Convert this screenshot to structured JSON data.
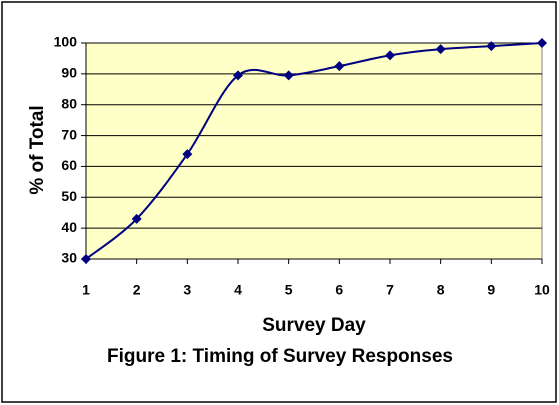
{
  "chart_data": {
    "type": "line",
    "title": "Figure 1: Timing of Survey Responses",
    "x_label": "Survey Day",
    "y_label": "% of Total",
    "x": [
      1,
      2,
      3,
      4,
      5,
      6,
      7,
      8,
      9,
      10
    ],
    "values": [
      30,
      43,
      64,
      89.5,
      89.5,
      92.5,
      96,
      98,
      99,
      100
    ],
    "color": "#000080",
    "smooth": true,
    "xlim": [
      1,
      10
    ],
    "xticks": [
      1,
      2,
      3,
      4,
      5,
      6,
      7,
      8,
      9,
      10
    ],
    "ylim": [
      30,
      100
    ],
    "yticks": [
      30,
      40,
      50,
      60,
      70,
      80,
      90,
      100
    ],
    "grid": true,
    "plot_background": "#ffffc8"
  }
}
